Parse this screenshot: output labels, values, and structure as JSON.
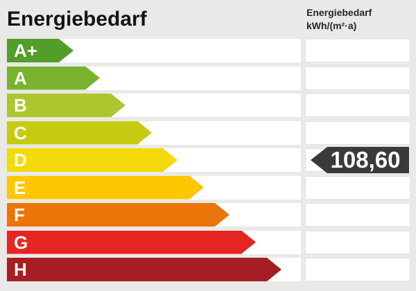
{
  "header": {
    "title": "Energiebedarf"
  },
  "unit_header": {
    "line1": "Energiebedarf",
    "line2": "kWh/(m²·a)"
  },
  "scale": {
    "rows": [
      {
        "label": "A+",
        "color": "#539d2b"
      },
      {
        "label": "A",
        "color": "#79b22d"
      },
      {
        "label": "B",
        "color": "#aec52e"
      },
      {
        "label": "C",
        "color": "#c6cb11"
      },
      {
        "label": "D",
        "color": "#f3da09"
      },
      {
        "label": "E",
        "color": "#fec701"
      },
      {
        "label": "F",
        "color": "#ec7509"
      },
      {
        "label": "G",
        "color": "#e52521"
      },
      {
        "label": "H",
        "color": "#a41e23"
      }
    ]
  },
  "value": {
    "text": "108,60",
    "grade": "D",
    "tag_color": "#3a3a39",
    "text_color": "#ffffff"
  },
  "colors": {
    "background": "#e9e9e7",
    "row_cell": "#ffffff"
  },
  "chart_data": {
    "type": "bar",
    "title": "Energiebedarf",
    "ylabel": "",
    "xlabel": "",
    "unit": "kWh/(m²·a)",
    "categories": [
      "A+",
      "A",
      "B",
      "C",
      "D",
      "E",
      "F",
      "G",
      "H"
    ],
    "bar_colors": [
      "#539d2b",
      "#79b22d",
      "#aec52e",
      "#c6cb11",
      "#f3da09",
      "#fec701",
      "#ec7509",
      "#e52521",
      "#a41e23"
    ],
    "bar_relative_lengths": [
      96,
      134,
      171,
      209,
      246,
      284,
      321,
      359,
      396
    ],
    "value": 108.6,
    "value_label": "108,60",
    "value_grade": "D",
    "legend_position": "none",
    "grid": false
  }
}
